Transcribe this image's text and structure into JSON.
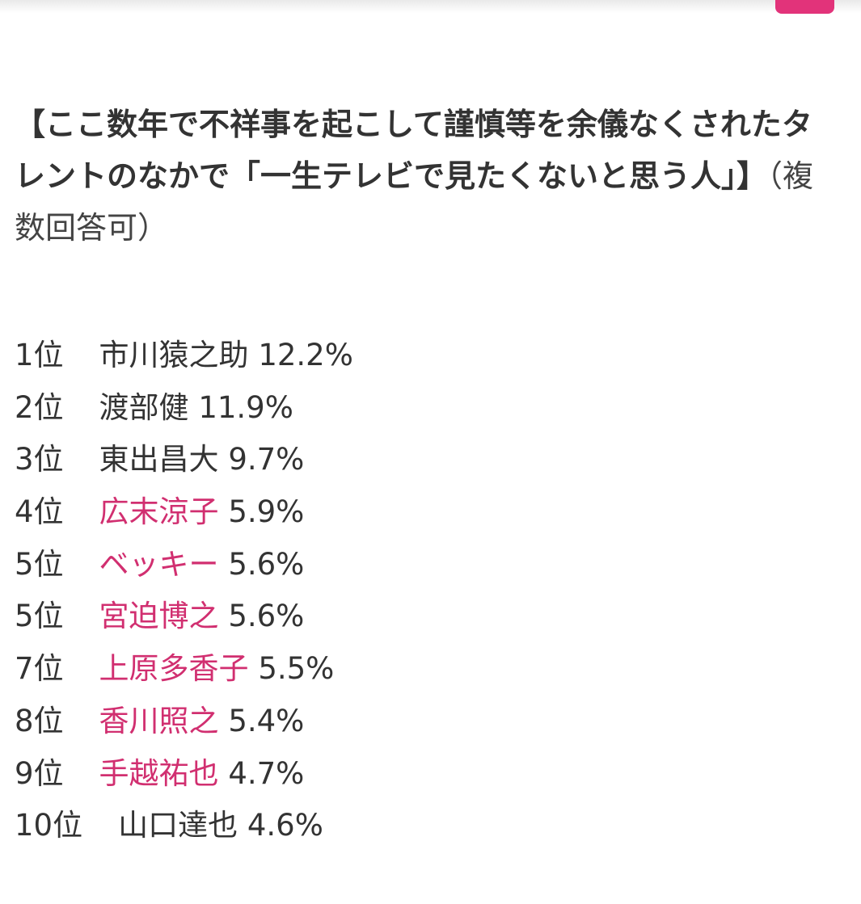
{
  "colors": {
    "link": "#d12f70",
    "accent_tab": "#e2337a",
    "text": "#333333"
  },
  "heading": {
    "title": "【ここ数年で不祥事を起こして謹慎等を余儀なくされたタレントのなかで「一生テレビで見たくないと思う人」】",
    "note": "（複数回答可）"
  },
  "ranking": [
    {
      "rank": "1位",
      "name": "市川猿之助",
      "percent": "12.2%",
      "linked": false
    },
    {
      "rank": "2位",
      "name": "渡部健",
      "percent": "11.9%",
      "linked": false
    },
    {
      "rank": "3位",
      "name": "東出昌大",
      "percent": "9.7%",
      "linked": false
    },
    {
      "rank": "4位",
      "name": "広末涼子",
      "percent": "5.9%",
      "linked": true
    },
    {
      "rank": "5位",
      "name": "ベッキー",
      "percent": "5.6%",
      "linked": true
    },
    {
      "rank": "5位",
      "name": "宮迫博之",
      "percent": "5.6%",
      "linked": true
    },
    {
      "rank": "7位",
      "name": "上原多香子",
      "percent": "5.5%",
      "linked": true
    },
    {
      "rank": "8位",
      "name": "香川照之",
      "percent": "5.4%",
      "linked": true
    },
    {
      "rank": "9位",
      "name": "手越祐也",
      "percent": "4.7%",
      "linked": true
    },
    {
      "rank": "10位",
      "name": "山口達也",
      "percent": "4.6%",
      "linked": false
    }
  ]
}
